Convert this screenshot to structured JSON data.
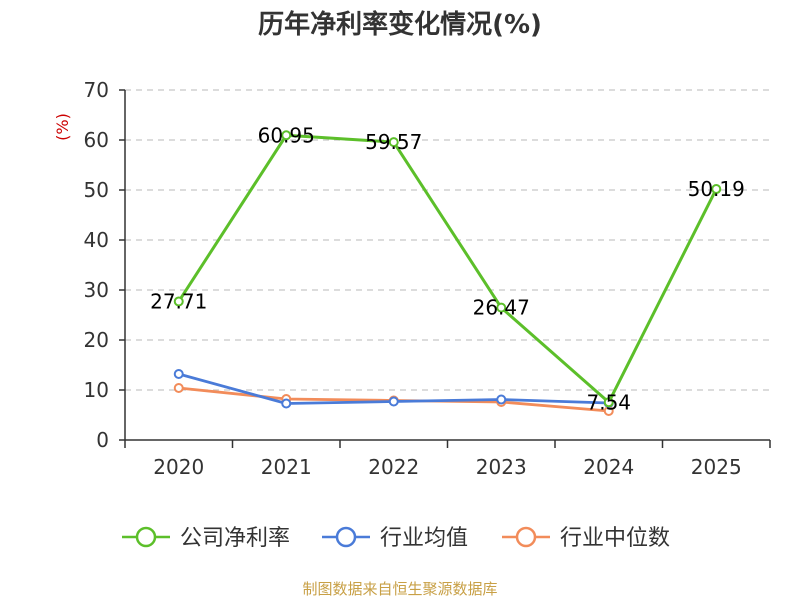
{
  "chart_data": {
    "type": "line",
    "title": "历年净利率变化情况(%)",
    "ylabel": "(%)",
    "xlabel": "",
    "categories": [
      "2020",
      "2021",
      "2022",
      "2023",
      "2024",
      "2025"
    ],
    "ylim": [
      0,
      70
    ],
    "yticks": [
      0,
      10,
      20,
      30,
      40,
      50,
      60,
      70
    ],
    "grid": true,
    "legend_position": "bottom",
    "series": [
      {
        "name": "公司净利率",
        "color": "#5cbf2a",
        "values": [
          27.71,
          60.95,
          59.57,
          26.47,
          7.54,
          50.19
        ],
        "labels": [
          "27.71",
          "60.95",
          "59.57",
          "26.47",
          "7.54",
          "50.19"
        ]
      },
      {
        "name": "行业均值",
        "color": "#4a7bd8",
        "values": [
          13.2,
          7.3,
          7.7,
          8.1,
          7.4,
          null
        ]
      },
      {
        "name": "行业中位数",
        "color": "#f28c5a",
        "values": [
          10.4,
          8.2,
          7.9,
          7.6,
          5.8,
          null
        ]
      }
    ]
  },
  "footer": {
    "source": "制图数据来自恒生聚源数据库",
    "source_color": "#c8a046"
  }
}
